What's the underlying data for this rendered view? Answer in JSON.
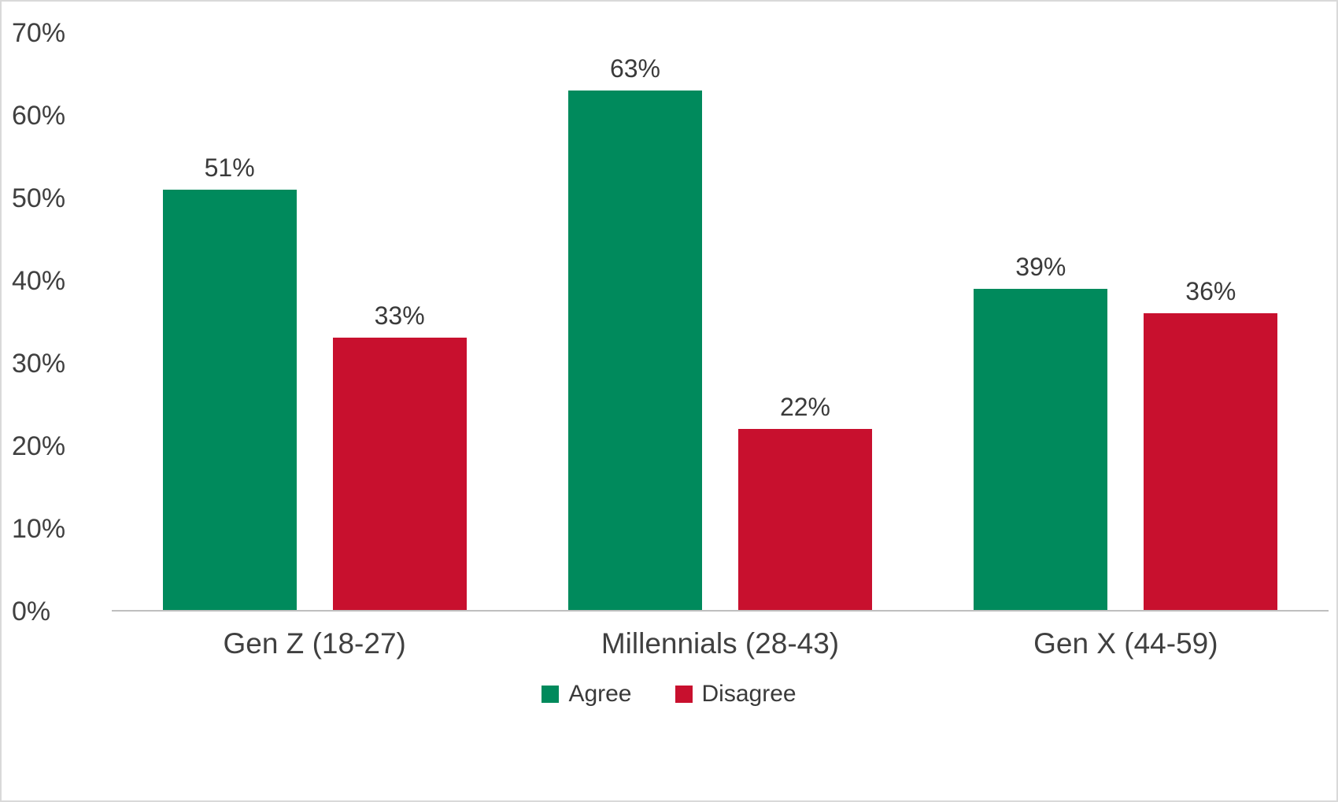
{
  "chart_data": {
    "type": "bar",
    "title": "",
    "xlabel": "",
    "ylabel": "",
    "categories": [
      "Gen Z (18-27)",
      "Millennials (28-43)",
      "Gen X (44-59)"
    ],
    "series": [
      {
        "name": "Agree",
        "color": "#008A5C",
        "values": [
          51,
          63,
          39
        ]
      },
      {
        "name": "Disagree",
        "color": "#C8102E",
        "values": [
          33,
          22,
          36
        ]
      }
    ],
    "value_suffix": "%",
    "ylim": [
      0,
      70
    ],
    "ytick_step": 10,
    "ytick_labels": [
      "0%",
      "10%",
      "20%",
      "30%",
      "40%",
      "50%",
      "60%",
      "70%"
    ],
    "data_labels": [
      [
        "51%",
        "63%",
        "39%"
      ],
      [
        "33%",
        "22%",
        "36%"
      ]
    ],
    "grid": false,
    "legend_position": "bottom",
    "legend_labels": [
      "Agree",
      "Disagree"
    ]
  }
}
